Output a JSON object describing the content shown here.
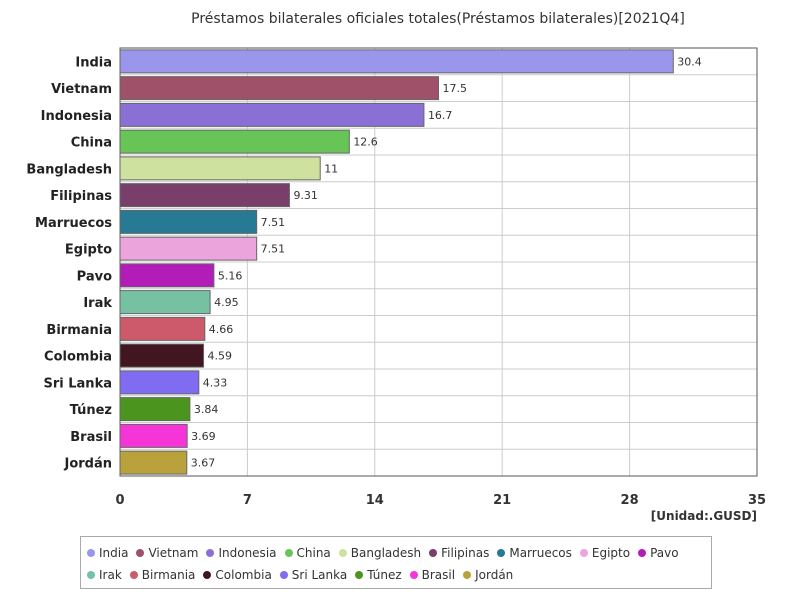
{
  "chart_data": {
    "type": "bar",
    "orientation": "horizontal",
    "title": "Préstamos bilaterales oficiales totales(Préstamos bilaterales)[2021Q4]",
    "unit_label": "[Unidad:.GUSD]",
    "xlim": [
      0,
      35
    ],
    "x_ticks": [
      "0",
      "7",
      "14",
      "21",
      "28",
      "35"
    ],
    "grid": true,
    "legend_position": "bottom",
    "categories": [
      "India",
      "Vietnam",
      "Indonesia",
      "China",
      "Bangladesh",
      "Filipinas",
      "Marruecos",
      "Egipto",
      "Pavo",
      "Irak",
      "Birmania",
      "Colombia",
      "Sri Lanka",
      "Túnez",
      "Brasil",
      "Jordán"
    ],
    "values": [
      30.4,
      17.5,
      16.7,
      12.6,
      11,
      9.31,
      7.51,
      7.51,
      5.16,
      4.95,
      4.66,
      4.59,
      4.33,
      3.84,
      3.69,
      3.67
    ],
    "value_labels": [
      "30.4",
      "17.5",
      "16.7",
      "12.6",
      "11",
      "9.31",
      "7.51",
      "7.51",
      "5.16",
      "4.95",
      "4.66",
      "4.59",
      "4.33",
      "3.84",
      "3.69",
      "3.67"
    ],
    "colors": [
      "#9a96ec",
      "#9e5169",
      "#8a70d4",
      "#66c556",
      "#cfe19f",
      "#7a3e6a",
      "#267a93",
      "#eca5dc",
      "#b21cb8",
      "#76c1a2",
      "#cc5a6b",
      "#421620",
      "#7f6cf0",
      "#4b951e",
      "#f535d7",
      "#b9a23b"
    ]
  }
}
